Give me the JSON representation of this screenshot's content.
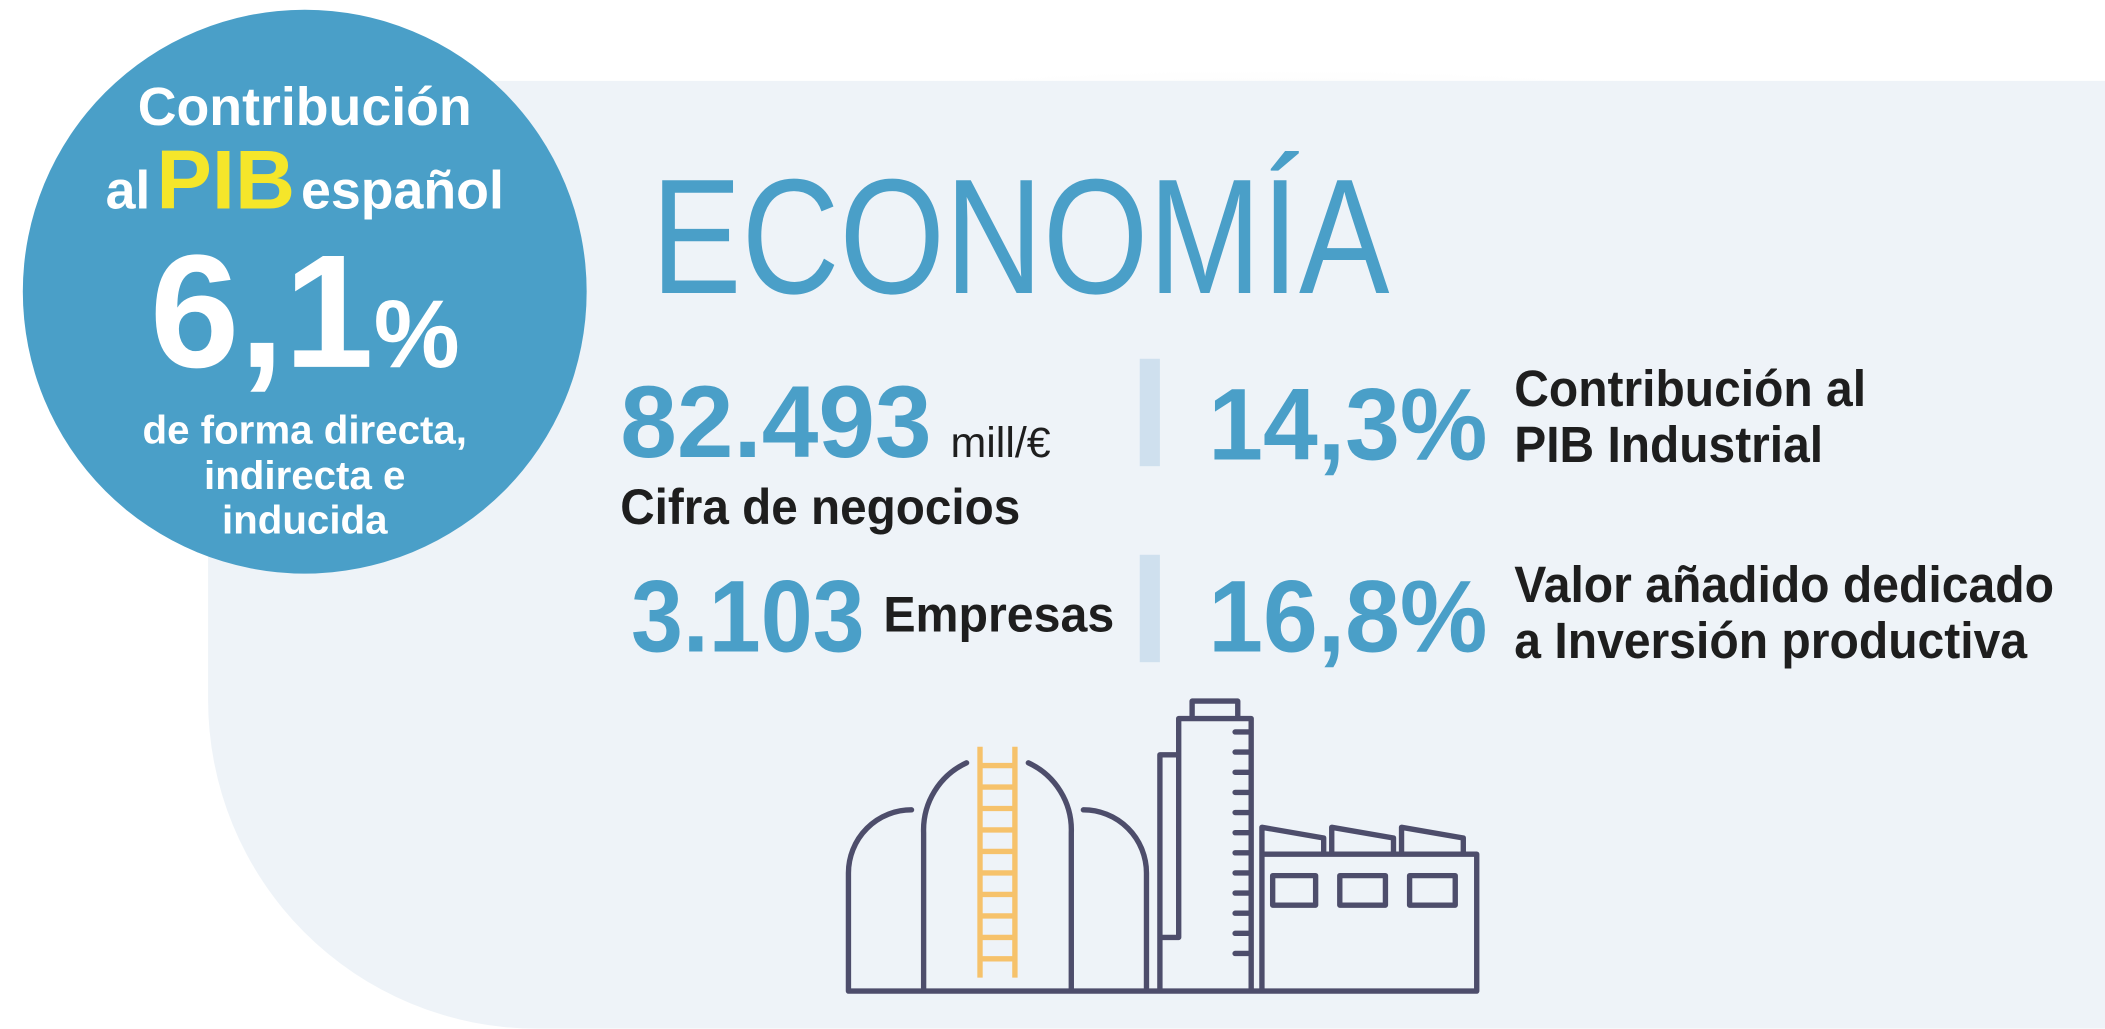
{
  "badge": {
    "line1": "Contribución",
    "line2_a": "al",
    "line2_b": "PIB",
    "line2_c": "español",
    "value": "6,1",
    "unit": "%",
    "note": [
      "de forma directa,",
      "indirecta e",
      "inducida"
    ]
  },
  "heading": "ECONOMÍA",
  "stats": [
    {
      "value": "82.493",
      "unit": "mill/€",
      "label": [
        "Cifra de negocios"
      ]
    },
    {
      "value": "14,3%",
      "label": [
        "Contribución al",
        "PIB Industrial"
      ]
    },
    {
      "value": "3.103",
      "label": [
        "Empresas"
      ]
    },
    {
      "value": "16,8%",
      "label": [
        "Valor añadido dedicado",
        "a Inversión productiva"
      ]
    }
  ]
}
